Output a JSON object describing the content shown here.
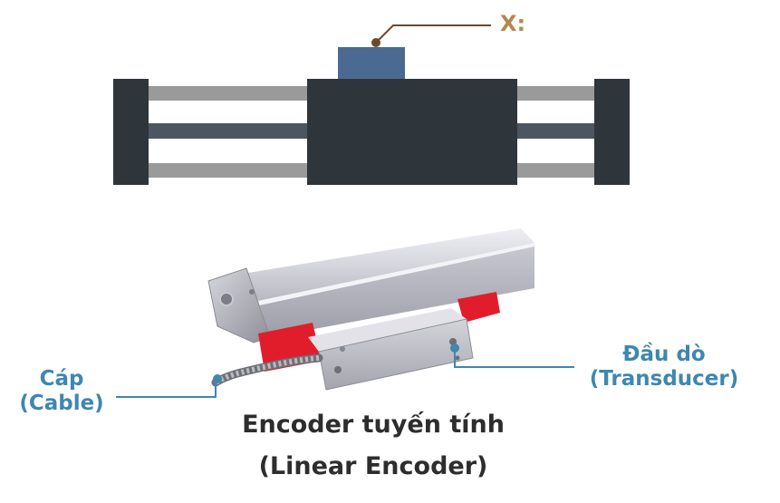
{
  "top_diagram": {
    "axis_label": "X:",
    "colors": {
      "frame": "#2e353b",
      "slider": "#2e353b",
      "head": "#4b6a91",
      "rail_light": "#9a9a9a",
      "rail_dark": "#4c5660",
      "leader": "#6b4a2b"
    }
  },
  "photo": {
    "labels": {
      "cable": [
        "Cáp",
        "(Cable)"
      ],
      "transducer": [
        "Đầu dò",
        "(Transducer)"
      ]
    },
    "colors": {
      "label": "#3f87b0",
      "bracket": "#e21d2b"
    }
  },
  "caption": {
    "line1": "Encoder tuyến tính",
    "line2": "(Linear Encoder)"
  }
}
